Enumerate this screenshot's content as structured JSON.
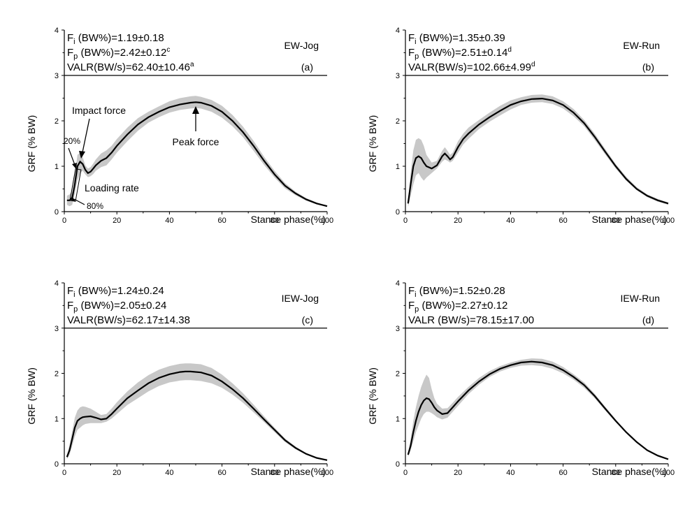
{
  "chart_data": [
    {
      "type": "line",
      "condition": "EW-Jog",
      "panel_label": "(a)",
      "stats": {
        "fi": {
          "pre": "F",
          "sub": "i",
          "rest": " (BW%)=1.19±0.18",
          "sup": ""
        },
        "fp": {
          "pre": "F",
          "sub": "p",
          "rest": " (BW%)=2.42±0.12",
          "sup": "c"
        },
        "valr": {
          "pre": "VALR(BW/s)=62.40±10.46",
          "sup": "a"
        }
      },
      "xlabel": "Stance phase(%)",
      "ylabel": "GRF (% BW)",
      "xlim": [
        0,
        100
      ],
      "ylim": [
        0,
        4
      ],
      "xticks": [
        "0",
        "20",
        "40",
        "60",
        "80",
        "100"
      ],
      "yticks": [
        "0",
        "1",
        "2",
        "3",
        "4"
      ],
      "x": [
        1,
        2,
        3,
        4,
        5,
        6,
        7,
        8,
        9,
        10,
        11,
        12,
        14,
        16,
        18,
        20,
        24,
        28,
        32,
        36,
        40,
        44,
        48,
        50,
        52,
        56,
        60,
        64,
        68,
        72,
        76,
        80,
        84,
        88,
        92,
        96,
        100
      ],
      "mean": [
        0.25,
        0.25,
        0.3,
        0.6,
        1.0,
        1.1,
        1.05,
        0.92,
        0.85,
        0.88,
        0.95,
        1.02,
        1.12,
        1.18,
        1.3,
        1.45,
        1.7,
        1.92,
        2.08,
        2.2,
        2.3,
        2.36,
        2.4,
        2.41,
        2.4,
        2.33,
        2.2,
        2.0,
        1.75,
        1.45,
        1.12,
        0.82,
        0.57,
        0.4,
        0.27,
        0.18,
        0.12
      ],
      "lower": [
        0.15,
        0.12,
        0.15,
        0.4,
        0.7,
        0.85,
        0.9,
        0.82,
        0.76,
        0.78,
        0.83,
        0.9,
        0.98,
        1.02,
        1.15,
        1.3,
        1.55,
        1.78,
        1.96,
        2.08,
        2.18,
        2.24,
        2.27,
        2.28,
        2.27,
        2.2,
        2.07,
        1.88,
        1.64,
        1.34,
        1.03,
        0.75,
        0.51,
        0.36,
        0.24,
        0.16,
        0.11
      ],
      "upper": [
        0.35,
        0.38,
        0.45,
        0.8,
        1.25,
        1.3,
        1.2,
        1.02,
        0.95,
        0.98,
        1.06,
        1.15,
        1.28,
        1.35,
        1.45,
        1.6,
        1.85,
        2.06,
        2.2,
        2.32,
        2.43,
        2.5,
        2.54,
        2.55,
        2.53,
        2.46,
        2.33,
        2.13,
        1.87,
        1.56,
        1.21,
        0.9,
        0.63,
        0.44,
        0.3,
        0.2,
        0.13
      ],
      "annotations": {
        "impact": "Impact force",
        "peak": "Peak force",
        "loading": "Loading rate",
        "p20": "20%",
        "p80": "80%"
      }
    },
    {
      "type": "line",
      "condition": "EW-Run",
      "panel_label": "(b)",
      "stats": {
        "fi": {
          "pre": "F",
          "sub": "i",
          "rest": " (BW%)=1.35±0.39",
          "sup": ""
        },
        "fp": {
          "pre": "F",
          "sub": "p",
          "rest": " (BW%)=2.51±0.14",
          "sup": "d"
        },
        "valr": {
          "pre": "VALR(BW/s)=102.66±4.99",
          "sup": "d"
        }
      },
      "xlabel": "Stance phase(%)",
      "ylabel": "GRF (% BW)",
      "xlim": [
        0,
        100
      ],
      "ylim": [
        0,
        4
      ],
      "xticks": [
        "0",
        "20",
        "40",
        "60",
        "80",
        "100"
      ],
      "yticks": [
        "0",
        "1",
        "2",
        "3",
        "4"
      ],
      "x": [
        1,
        2,
        3,
        4,
        5,
        6,
        7,
        8,
        10,
        12,
        14,
        15,
        16,
        17,
        18,
        20,
        22,
        24,
        28,
        32,
        36,
        40,
        44,
        48,
        52,
        56,
        60,
        64,
        68,
        72,
        76,
        80,
        84,
        88,
        92,
        96,
        100
      ],
      "mean": [
        0.18,
        0.6,
        1.0,
        1.18,
        1.22,
        1.18,
        1.08,
        1.0,
        0.95,
        1.02,
        1.22,
        1.28,
        1.22,
        1.15,
        1.2,
        1.42,
        1.6,
        1.72,
        1.92,
        2.08,
        2.22,
        2.35,
        2.43,
        2.48,
        2.49,
        2.45,
        2.35,
        2.18,
        1.95,
        1.65,
        1.32,
        1.0,
        0.72,
        0.5,
        0.35,
        0.25,
        0.18
      ],
      "lower": [
        0.1,
        0.35,
        0.6,
        0.8,
        0.85,
        0.75,
        0.68,
        0.75,
        0.85,
        0.95,
        1.1,
        1.15,
        1.12,
        1.08,
        1.12,
        1.3,
        1.48,
        1.6,
        1.82,
        1.98,
        2.12,
        2.25,
        2.35,
        2.4,
        2.41,
        2.37,
        2.27,
        2.1,
        1.88,
        1.58,
        1.26,
        0.95,
        0.68,
        0.47,
        0.32,
        0.22,
        0.15
      ],
      "upper": [
        0.26,
        0.85,
        1.35,
        1.58,
        1.62,
        1.58,
        1.45,
        1.25,
        1.08,
        1.12,
        1.34,
        1.42,
        1.34,
        1.25,
        1.3,
        1.55,
        1.72,
        1.85,
        2.02,
        2.18,
        2.33,
        2.45,
        2.52,
        2.57,
        2.58,
        2.54,
        2.43,
        2.26,
        2.02,
        1.72,
        1.38,
        1.05,
        0.77,
        0.54,
        0.38,
        0.28,
        0.2
      ]
    },
    {
      "type": "line",
      "condition": "IEW-Jog",
      "panel_label": "(c)",
      "stats": {
        "fi": {
          "pre": "F",
          "sub": "i",
          "rest": " (BW%)=1.24±0.24",
          "sup": ""
        },
        "fp": {
          "pre": "F",
          "sub": "p",
          "rest": " (BW%)=2.05±0.24",
          "sup": ""
        },
        "valr": {
          "pre": "VALR(BW/s)=62.17±14.38",
          "sup": ""
        }
      },
      "xlabel": "Stance phase(%)",
      "ylabel": "GRF (% BW)",
      "xlim": [
        0,
        100
      ],
      "ylim": [
        0,
        4
      ],
      "xticks": [
        "0",
        "20",
        "40",
        "60",
        "80",
        "100"
      ],
      "yticks": [
        "0",
        "1",
        "2",
        "3",
        "4"
      ],
      "x": [
        1,
        2,
        3,
        4,
        5,
        6,
        7,
        8,
        10,
        12,
        14,
        16,
        18,
        20,
        24,
        28,
        32,
        36,
        40,
        44,
        46,
        48,
        52,
        56,
        60,
        64,
        68,
        72,
        76,
        80,
        84,
        88,
        92,
        96,
        100
      ],
      "mean": [
        0.15,
        0.3,
        0.55,
        0.8,
        0.95,
        1.0,
        1.03,
        1.04,
        1.05,
        1.02,
        0.98,
        1.0,
        1.1,
        1.22,
        1.45,
        1.62,
        1.78,
        1.9,
        1.98,
        2.03,
        2.04,
        2.04,
        2.02,
        1.95,
        1.82,
        1.65,
        1.45,
        1.22,
        0.98,
        0.75,
        0.52,
        0.35,
        0.22,
        0.13,
        0.08
      ],
      "lower": [
        0.1,
        0.2,
        0.4,
        0.6,
        0.75,
        0.8,
        0.85,
        0.88,
        0.9,
        0.9,
        0.9,
        0.93,
        1.0,
        1.1,
        1.3,
        1.45,
        1.6,
        1.72,
        1.8,
        1.84,
        1.85,
        1.85,
        1.83,
        1.78,
        1.68,
        1.53,
        1.35,
        1.14,
        0.92,
        0.7,
        0.48,
        0.32,
        0.2,
        0.11,
        0.07
      ],
      "upper": [
        0.2,
        0.42,
        0.72,
        1.02,
        1.18,
        1.25,
        1.27,
        1.26,
        1.22,
        1.15,
        1.08,
        1.1,
        1.22,
        1.36,
        1.6,
        1.8,
        1.96,
        2.08,
        2.16,
        2.21,
        2.22,
        2.22,
        2.2,
        2.12,
        1.97,
        1.78,
        1.56,
        1.31,
        1.05,
        0.8,
        0.56,
        0.38,
        0.24,
        0.15,
        0.09
      ]
    },
    {
      "type": "line",
      "condition": "IEW-Run",
      "panel_label": "(d)",
      "stats": {
        "fi": {
          "pre": "F",
          "sub": "i",
          "rest": " (BW%)=1.52±0.28",
          "sup": ""
        },
        "fp": {
          "pre": "F",
          "sub": "p",
          "rest": " (BW%)=2.27±0.12",
          "sup": ""
        },
        "valr": {
          "pre": "VALR (BW/s)=78.15±17.00",
          "sup": ""
        }
      },
      "xlabel": "Stance phase(%)",
      "ylabel": "GRF (% BW)",
      "xlim": [
        0,
        100
      ],
      "ylim": [
        0,
        4
      ],
      "xticks": [
        "0",
        "20",
        "40",
        "60",
        "80",
        "100"
      ],
      "yticks": [
        "0",
        "1",
        "2",
        "3",
        "4"
      ],
      "x": [
        1,
        2,
        3,
        4,
        5,
        6,
        7,
        8,
        9,
        10,
        11,
        12,
        14,
        16,
        18,
        20,
        24,
        28,
        32,
        36,
        40,
        44,
        48,
        52,
        56,
        60,
        64,
        68,
        72,
        76,
        80,
        84,
        88,
        92,
        96,
        100
      ],
      "mean": [
        0.2,
        0.4,
        0.7,
        0.95,
        1.15,
        1.3,
        1.4,
        1.45,
        1.43,
        1.35,
        1.25,
        1.18,
        1.1,
        1.12,
        1.25,
        1.38,
        1.62,
        1.82,
        1.98,
        2.1,
        2.18,
        2.24,
        2.26,
        2.24,
        2.18,
        2.07,
        1.92,
        1.74,
        1.5,
        1.22,
        0.95,
        0.7,
        0.48,
        0.3,
        0.18,
        0.1
      ],
      "lower": [
        0.15,
        0.3,
        0.5,
        0.7,
        0.85,
        1.0,
        1.1,
        1.15,
        1.15,
        1.12,
        1.08,
        1.03,
        0.98,
        1.02,
        1.15,
        1.28,
        1.54,
        1.75,
        1.92,
        2.04,
        2.12,
        2.17,
        2.18,
        2.16,
        2.1,
        2.0,
        1.86,
        1.68,
        1.45,
        1.18,
        0.92,
        0.68,
        0.46,
        0.28,
        0.17,
        0.09
      ],
      "upper": [
        0.25,
        0.55,
        0.95,
        1.25,
        1.5,
        1.7,
        1.85,
        1.97,
        1.9,
        1.65,
        1.45,
        1.33,
        1.22,
        1.23,
        1.35,
        1.48,
        1.7,
        1.9,
        2.05,
        2.16,
        2.24,
        2.3,
        2.33,
        2.32,
        2.26,
        2.14,
        1.98,
        1.8,
        1.55,
        1.26,
        0.98,
        0.72,
        0.5,
        0.32,
        0.2,
        0.11
      ]
    }
  ]
}
